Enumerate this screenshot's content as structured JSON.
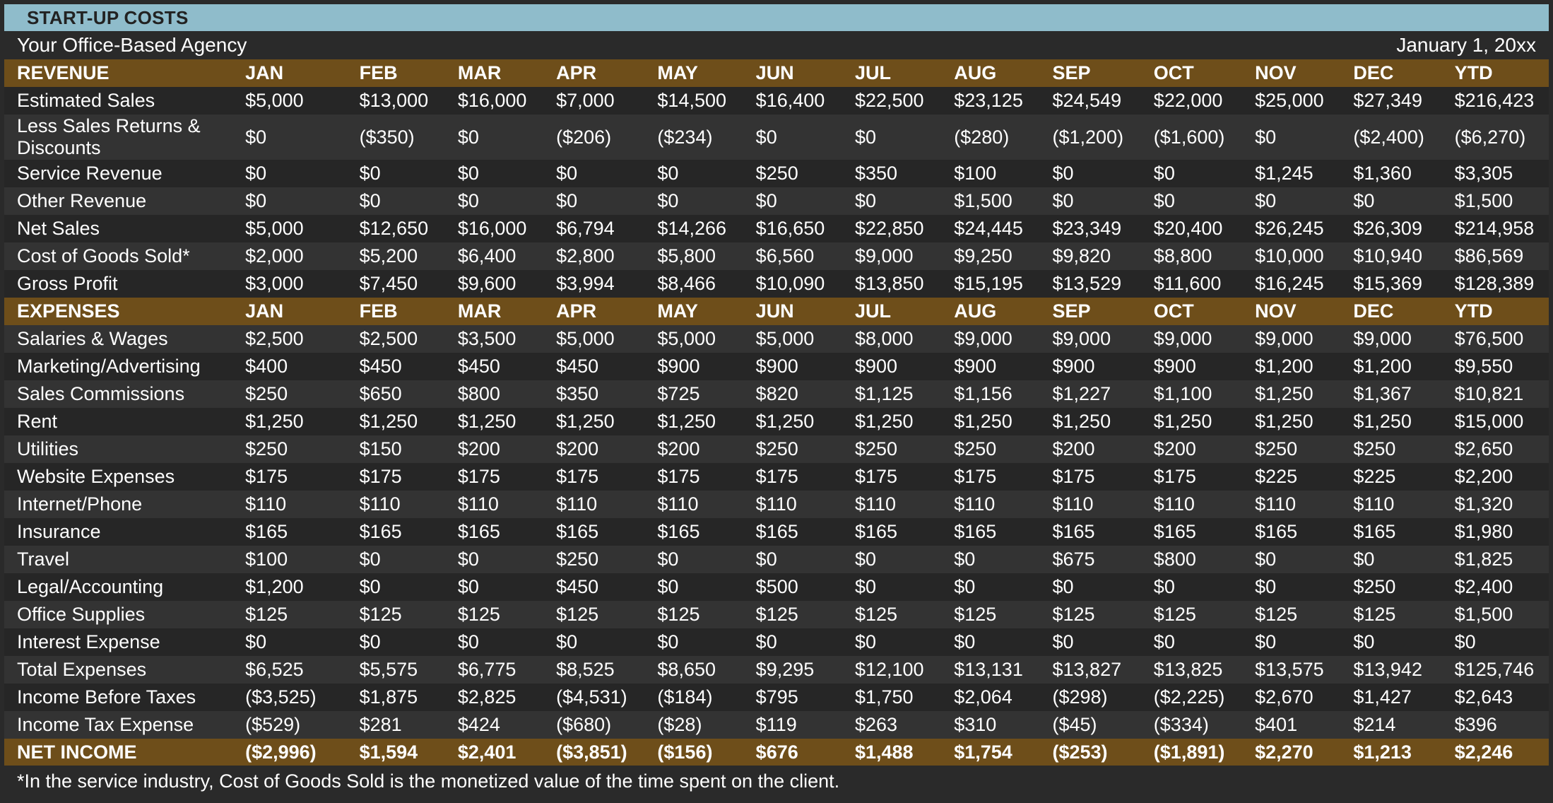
{
  "title": "START-UP COSTS",
  "company": "Your Office-Based Agency",
  "date": "January 1, 20xx",
  "revenue_header": [
    "REVENUE",
    "JAN",
    "FEB",
    "MAR",
    "APR",
    "MAY",
    "JUN",
    "JUL",
    "AUG",
    "SEP",
    "OCT",
    "NOV",
    "DEC",
    "YTD"
  ],
  "revenue_rows": [
    [
      "Estimated Sales",
      "$5,000",
      "$13,000",
      "$16,000",
      "$7,000",
      "$14,500",
      "$16,400",
      "$22,500",
      "$23,125",
      "$24,549",
      "$22,000",
      "$25,000",
      "$27,349",
      "$216,423"
    ],
    [
      "Less Sales Returns & Discounts",
      "$0",
      "($350)",
      "$0",
      "($206)",
      "($234)",
      "$0",
      "$0",
      "($280)",
      "($1,200)",
      "($1,600)",
      "$0",
      "($2,400)",
      "($6,270)"
    ],
    [
      "Service Revenue",
      "$0",
      "$0",
      "$0",
      "$0",
      "$0",
      "$250",
      "$350",
      "$100",
      "$0",
      "$0",
      "$1,245",
      "$1,360",
      "$3,305"
    ],
    [
      "Other Revenue",
      "$0",
      "$0",
      "$0",
      "$0",
      "$0",
      "$0",
      "$0",
      "$1,500",
      "$0",
      "$0",
      "$0",
      "$0",
      "$1,500"
    ],
    [
      "Net Sales",
      "$5,000",
      "$12,650",
      "$16,000",
      "$6,794",
      "$14,266",
      "$16,650",
      "$22,850",
      "$24,445",
      "$23,349",
      "$20,400",
      "$26,245",
      "$26,309",
      "$214,958"
    ],
    [
      "Cost of Goods Sold*",
      "$2,000",
      "$5,200",
      "$6,400",
      "$2,800",
      "$5,800",
      "$6,560",
      "$9,000",
      "$9,250",
      "$9,820",
      "$8,800",
      "$10,000",
      "$10,940",
      "$86,569"
    ],
    [
      "Gross Profit",
      "$3,000",
      "$7,450",
      "$9,600",
      "$3,994",
      "$8,466",
      "$10,090",
      "$13,850",
      "$15,195",
      "$13,529",
      "$11,600",
      "$16,245",
      "$15,369",
      "$128,389"
    ]
  ],
  "expenses_header": [
    "EXPENSES",
    "JAN",
    "FEB",
    "MAR",
    "APR",
    "MAY",
    "JUN",
    "JUL",
    "AUG",
    "SEP",
    "OCT",
    "NOV",
    "DEC",
    "YTD"
  ],
  "expense_rows": [
    [
      "Salaries & Wages",
      "$2,500",
      "$2,500",
      "$3,500",
      "$5,000",
      "$5,000",
      "$5,000",
      "$8,000",
      "$9,000",
      "$9,000",
      "$9,000",
      "$9,000",
      "$9,000",
      "$76,500"
    ],
    [
      "Marketing/Advertising",
      "$400",
      "$450",
      "$450",
      "$450",
      "$900",
      "$900",
      "$900",
      "$900",
      "$900",
      "$900",
      "$1,200",
      "$1,200",
      "$9,550"
    ],
    [
      "Sales Commissions",
      "$250",
      "$650",
      "$800",
      "$350",
      "$725",
      "$820",
      "$1,125",
      "$1,156",
      "$1,227",
      "$1,100",
      "$1,250",
      "$1,367",
      "$10,821"
    ],
    [
      "Rent",
      "$1,250",
      "$1,250",
      "$1,250",
      "$1,250",
      "$1,250",
      "$1,250",
      "$1,250",
      "$1,250",
      "$1,250",
      "$1,250",
      "$1,250",
      "$1,250",
      "$15,000"
    ],
    [
      "Utilities",
      "$250",
      "$150",
      "$200",
      "$200",
      "$200",
      "$250",
      "$250",
      "$250",
      "$200",
      "$200",
      "$250",
      "$250",
      "$2,650"
    ],
    [
      "Website Expenses",
      "$175",
      "$175",
      "$175",
      "$175",
      "$175",
      "$175",
      "$175",
      "$175",
      "$175",
      "$175",
      "$225",
      "$225",
      "$2,200"
    ],
    [
      "Internet/Phone",
      "$110",
      "$110",
      "$110",
      "$110",
      "$110",
      "$110",
      "$110",
      "$110",
      "$110",
      "$110",
      "$110",
      "$110",
      "$1,320"
    ],
    [
      "Insurance",
      "$165",
      "$165",
      "$165",
      "$165",
      "$165",
      "$165",
      "$165",
      "$165",
      "$165",
      "$165",
      "$165",
      "$165",
      "$1,980"
    ],
    [
      "Travel",
      "$100",
      "$0",
      "$0",
      "$250",
      "$0",
      "$0",
      "$0",
      "$0",
      "$675",
      "$800",
      "$0",
      "$0",
      "$1,825"
    ],
    [
      "Legal/Accounting",
      "$1,200",
      "$0",
      "$0",
      "$450",
      "$0",
      "$500",
      "$0",
      "$0",
      "$0",
      "$0",
      "$0",
      "$250",
      "$2,400"
    ],
    [
      "Office Supplies",
      "$125",
      "$125",
      "$125",
      "$125",
      "$125",
      "$125",
      "$125",
      "$125",
      "$125",
      "$125",
      "$125",
      "$125",
      "$1,500"
    ],
    [
      "Interest Expense",
      "$0",
      "$0",
      "$0",
      "$0",
      "$0",
      "$0",
      "$0",
      "$0",
      "$0",
      "$0",
      "$0",
      "$0",
      "$0"
    ],
    [
      "Total Expenses",
      "$6,525",
      "$5,575",
      "$6,775",
      "$8,525",
      "$8,650",
      "$9,295",
      "$12,100",
      "$13,131",
      "$13,827",
      "$13,825",
      "$13,575",
      "$13,942",
      "$125,746"
    ],
    [
      "Income Before Taxes",
      "($3,525)",
      "$1,875",
      "$2,825",
      "($4,531)",
      "($184)",
      "$795",
      "$1,750",
      "$2,064",
      "($298)",
      "($2,225)",
      "$2,670",
      "$1,427",
      "$2,643"
    ],
    [
      "Income Tax Expense",
      "($529)",
      "$281",
      "$424",
      "($680)",
      "($28)",
      "$119",
      "$263",
      "$310",
      "($45)",
      "($334)",
      "$401",
      "$214",
      "$396"
    ]
  ],
  "net_income_row": [
    "NET INCOME",
    "($2,996)",
    "$1,594",
    "$2,401",
    "($3,851)",
    "($156)",
    "$676",
    "$1,488",
    "$1,754",
    "($253)",
    "($1,891)",
    "$2,270",
    "$1,213",
    "$2,246"
  ],
  "footnote": "*In the service industry, Cost of Goods Sold is the monetized value of the time spent on the client.",
  "colors": {
    "title_bar": "#8fbccb",
    "band": "#6e4e1a",
    "row_dark": "#262626",
    "row_light": "#333333",
    "text": "#ffffff"
  }
}
